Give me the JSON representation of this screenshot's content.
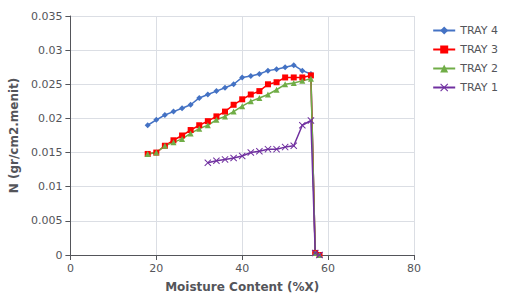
{
  "chart_data": {
    "type": "line",
    "title": "",
    "xlabel": "Moisture Content (%X)",
    "ylabel": "N (gr/cm2.menit)",
    "xlim": [
      0,
      80
    ],
    "ylim": [
      0,
      0.035
    ],
    "xticks": [
      0,
      20,
      40,
      60,
      80
    ],
    "yticks": [
      0,
      0.005,
      0.01,
      0.015,
      0.02,
      0.025,
      0.03,
      0.035
    ],
    "grid": true,
    "legend": "right",
    "series": [
      {
        "name": "TRAY 4",
        "color": "#4472C4",
        "marker": "diamond",
        "x": [
          18,
          20,
          22,
          24,
          26,
          28,
          30,
          32,
          34,
          36,
          38,
          40,
          42,
          44,
          46,
          48,
          50,
          52,
          54,
          56,
          57,
          58
        ],
        "values": [
          0.019,
          0.0198,
          0.0205,
          0.021,
          0.0215,
          0.022,
          0.023,
          0.0235,
          0.024,
          0.0245,
          0.025,
          0.026,
          0.0262,
          0.0265,
          0.027,
          0.0272,
          0.0275,
          0.0278,
          0.027,
          0.0265,
          0.0003,
          0.0
        ]
      },
      {
        "name": "TRAY 3",
        "color": "#FF0000",
        "marker": "square",
        "x": [
          18,
          20,
          22,
          24,
          26,
          28,
          30,
          32,
          34,
          36,
          38,
          40,
          42,
          44,
          46,
          48,
          50,
          52,
          54,
          56,
          57,
          58
        ],
        "values": [
          0.0148,
          0.015,
          0.016,
          0.0168,
          0.0175,
          0.0183,
          0.019,
          0.0196,
          0.0203,
          0.021,
          0.022,
          0.0228,
          0.0235,
          0.024,
          0.025,
          0.0253,
          0.026,
          0.026,
          0.026,
          0.0263,
          0.0003,
          0.0
        ]
      },
      {
        "name": "TRAY 2",
        "color": "#70AD47",
        "marker": "triangle",
        "x": [
          18,
          20,
          22,
          24,
          26,
          28,
          30,
          32,
          34,
          36,
          38,
          40,
          42,
          44,
          46,
          48,
          50,
          52,
          54,
          56,
          57,
          58
        ],
        "values": [
          0.0148,
          0.015,
          0.016,
          0.0165,
          0.017,
          0.0178,
          0.0185,
          0.019,
          0.0198,
          0.0203,
          0.021,
          0.0218,
          0.0225,
          0.023,
          0.0235,
          0.0242,
          0.025,
          0.0252,
          0.0255,
          0.0258,
          0.0003,
          0.0
        ]
      },
      {
        "name": "TRAY 1",
        "color": "#7030A0",
        "marker": "x",
        "x": [
          32,
          34,
          36,
          38,
          40,
          42,
          44,
          46,
          48,
          50,
          52,
          54,
          56,
          57,
          58
        ],
        "values": [
          0.0135,
          0.0138,
          0.014,
          0.0142,
          0.0145,
          0.015,
          0.0152,
          0.0155,
          0.0155,
          0.0158,
          0.016,
          0.019,
          0.0197,
          0.0003,
          0.0
        ]
      }
    ]
  }
}
